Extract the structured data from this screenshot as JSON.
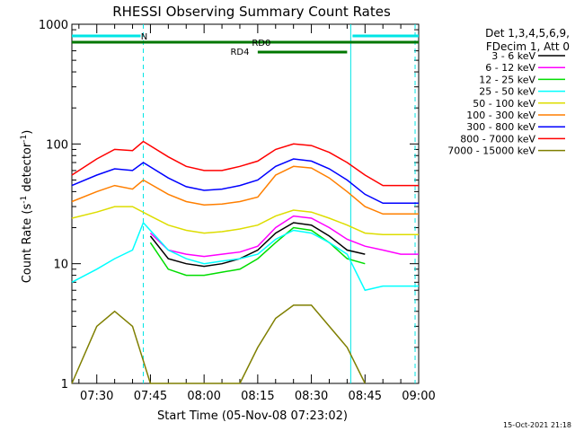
{
  "chart_data": {
    "type": "line",
    "title": "RHESSI Observing Summary Count Rates",
    "xlabel": "Start Time (05-Nov-08 07:23:02)",
    "ylabel_main": "Count Rate (s",
    "ylabel_sup1": "-1",
    "ylabel_mid": " detector",
    "ylabel_sup2": "-1",
    "ylabel_end": ")",
    "yscale": "log",
    "xlim": [
      "07:23:02",
      "09:00:00"
    ],
    "ylim": [
      1,
      1000
    ],
    "x_ticks": [
      "07:30",
      "07:45",
      "08:00",
      "08:15",
      "08:30",
      "08:45",
      "09:00"
    ],
    "y_ticks": [
      "1",
      "10",
      "100",
      "1000"
    ],
    "legend": {
      "position": "right",
      "header_lines": [
        "Det 1,3,4,5,6,9,",
        "FDecim 1, Att 0"
      ]
    },
    "series": [
      {
        "name": "3 - 6 keV",
        "color": "#000000",
        "x": [
          "07:45",
          "07:50",
          "07:55",
          "08:00",
          "08:05",
          "08:10",
          "08:15",
          "08:20",
          "08:25",
          "08:30",
          "08:35",
          "08:40",
          "08:45"
        ],
        "y": [
          17,
          11,
          10,
          9.5,
          10,
          11,
          13,
          18,
          22,
          21,
          17,
          13,
          12
        ]
      },
      {
        "name": "6 - 12 keV",
        "color": "#ff00ff",
        "x": [
          "07:45",
          "07:50",
          "07:55",
          "08:00",
          "08:05",
          "08:10",
          "08:15",
          "08:20",
          "08:25",
          "08:30",
          "08:35",
          "08:40",
          "08:45",
          "08:50",
          "08:55",
          "09:00"
        ],
        "y": [
          18,
          13,
          12,
          11.5,
          12,
          12.5,
          14,
          20,
          25,
          24,
          20,
          16,
          14,
          13,
          12,
          12
        ]
      },
      {
        "name": "12 - 25 keV",
        "color": "#00dd00",
        "x": [
          "07:45",
          "07:50",
          "07:55",
          "08:00",
          "08:05",
          "08:10",
          "08:15",
          "08:20",
          "08:25",
          "08:30",
          "08:35",
          "08:40",
          "08:45"
        ],
        "y": [
          15,
          9,
          8,
          8,
          8.5,
          9,
          11,
          15,
          20,
          19,
          15,
          11,
          10
        ]
      },
      {
        "name": "25 - 50 keV",
        "color": "#00ffff",
        "x": [
          "07:23:02",
          "07:30",
          "07:35",
          "07:40",
          "07:43",
          "07:50",
          "07:55",
          "08:00",
          "08:05",
          "08:10",
          "08:15",
          "08:20",
          "08:25",
          "08:30",
          "08:35",
          "08:40",
          "08:45",
          "08:50",
          "08:55",
          "09:00"
        ],
        "y": [
          7,
          9,
          11,
          13,
          22,
          13,
          11,
          10,
          10.5,
          11,
          12,
          16,
          19,
          18,
          15,
          12,
          6,
          6.5,
          6.5,
          6.5
        ]
      },
      {
        "name": "50 - 100 keV",
        "color": "#dddd00",
        "x": [
          "07:23:02",
          "07:30",
          "07:35",
          "07:40",
          "07:45",
          "07:50",
          "07:55",
          "08:00",
          "08:05",
          "08:10",
          "08:15",
          "08:20",
          "08:25",
          "08:30",
          "08:35",
          "08:40",
          "08:45",
          "08:50",
          "08:55",
          "09:00"
        ],
        "y": [
          24,
          27,
          30,
          30,
          25,
          21,
          19,
          18,
          18.5,
          19.5,
          21,
          25,
          28,
          27,
          24,
          21,
          18,
          17.5,
          17.5,
          17.5
        ]
      },
      {
        "name": "100 - 300 keV",
        "color": "#ff7f00",
        "x": [
          "07:23:02",
          "07:30",
          "07:35",
          "07:40",
          "07:43",
          "07:50",
          "07:55",
          "08:00",
          "08:05",
          "08:10",
          "08:15",
          "08:20",
          "08:25",
          "08:30",
          "08:35",
          "08:40",
          "08:45",
          "08:50",
          "08:55",
          "09:00"
        ],
        "y": [
          33,
          40,
          45,
          42,
          50,
          38,
          33,
          31,
          31.5,
          33,
          36,
          55,
          65,
          63,
          52,
          40,
          30,
          26,
          26,
          26
        ]
      },
      {
        "name": "300 - 800 keV",
        "color": "#0000ff",
        "x": [
          "07:23:02",
          "07:30",
          "07:35",
          "07:40",
          "07:43",
          "07:50",
          "07:55",
          "08:00",
          "08:05",
          "08:10",
          "08:15",
          "08:20",
          "08:25",
          "08:30",
          "08:35",
          "08:40",
          "08:45",
          "08:50",
          "08:55",
          "09:00"
        ],
        "y": [
          45,
          55,
          62,
          60,
          70,
          52,
          44,
          41,
          42,
          45,
          50,
          65,
          75,
          72,
          62,
          50,
          38,
          32,
          32,
          32
        ]
      },
      {
        "name": "800 - 7000 keV",
        "color": "#ff0000",
        "x": [
          "07:23:02",
          "07:30",
          "07:35",
          "07:40",
          "07:43",
          "07:50",
          "07:55",
          "08:00",
          "08:05",
          "08:10",
          "08:15",
          "08:20",
          "08:25",
          "08:30",
          "08:35",
          "08:40",
          "08:45",
          "08:50",
          "08:55",
          "09:00"
        ],
        "y": [
          55,
          75,
          90,
          88,
          105,
          78,
          65,
          60,
          60,
          65,
          72,
          90,
          100,
          97,
          85,
          70,
          55,
          45,
          45,
          45
        ]
      },
      {
        "name": "7000 - 15000 keV",
        "color": "#7f7f00",
        "x": [
          "07:23:02",
          "07:30",
          "07:35",
          "07:40",
          "07:45",
          "07:50",
          "08:10",
          "08:15",
          "08:20",
          "08:25",
          "08:30",
          "08:35",
          "08:40",
          "08:45"
        ],
        "y": [
          1,
          3,
          4,
          3,
          1,
          1,
          1,
          2,
          3.5,
          4.5,
          4.5,
          3,
          2,
          1
        ]
      }
    ],
    "annotations": {
      "attenuator_label": "N",
      "decimation_labels": [
        "RD0",
        "RD4"
      ],
      "vertical_markers": [
        "07:43",
        "08:41",
        "08:59"
      ]
    },
    "grid": false,
    "timestamp": "15-Oct-2021 21:18"
  }
}
